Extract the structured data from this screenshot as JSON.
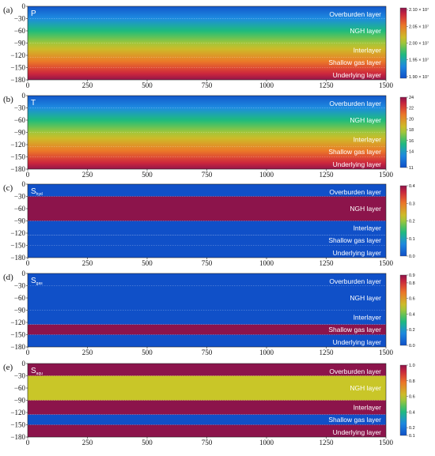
{
  "chart_data": [
    {
      "type": "heatmap",
      "panel_label": "(a)",
      "variable": "P",
      "variable_sub": "",
      "colorbar_label": "P",
      "colorbar_ticks": [
        "2.10 × 10⁷",
        "2.05 × 10⁷",
        "2.00 × 10⁷",
        "1.95 × 10⁷",
        "1.90 × 10⁷"
      ],
      "colorbar_tick_values": [
        21000000,
        20500000,
        20000000,
        19500000,
        19000000
      ],
      "colorbar_range": [
        18950000,
        21050000
      ],
      "colormap": "jet",
      "field": "vertical-gradient",
      "layers": [
        "Overburden layer",
        "NGH layer",
        "Interlayer",
        "Shallow gas layer",
        "Underlying layer"
      ],
      "layer_depths": [
        [
          0,
          30
        ],
        [
          30,
          90
        ],
        [
          90,
          125
        ],
        [
          125,
          150
        ],
        [
          150,
          180
        ]
      ],
      "xlim": [
        0,
        1500
      ],
      "ylim": [
        -180,
        0
      ],
      "x_ticks": [
        "0",
        "250",
        "500",
        "750",
        "1000",
        "1250",
        "1500"
      ],
      "y_ticks": [
        "0",
        "−30",
        "−60",
        "−90",
        "−120",
        "−150",
        "−180"
      ]
    },
    {
      "type": "heatmap",
      "panel_label": "(b)",
      "variable": "T",
      "variable_sub": "",
      "colorbar_label": "T",
      "colorbar_ticks": [
        "24",
        "22",
        "20",
        "18",
        "16",
        "14",
        "11"
      ],
      "colorbar_tick_values": [
        24,
        22,
        20,
        18,
        16,
        14,
        11
      ],
      "colorbar_range": [
        11,
        24
      ],
      "colormap": "jet",
      "field": "vertical-gradient",
      "layers": [
        "Overburden layer",
        "NGH layer",
        "Interlayer",
        "Shallow gas layer",
        "Underlying layer"
      ],
      "layer_depths": [
        [
          0,
          30
        ],
        [
          30,
          90
        ],
        [
          90,
          125
        ],
        [
          125,
          150
        ],
        [
          150,
          180
        ]
      ],
      "xlim": [
        0,
        1500
      ],
      "ylim": [
        -180,
        0
      ],
      "x_ticks": [
        "0",
        "250",
        "500",
        "750",
        "1000",
        "1250",
        "1500"
      ],
      "y_ticks": [
        "0",
        "−30",
        "−60",
        "−90",
        "−120",
        "−150",
        "−180"
      ]
    },
    {
      "type": "heatmap",
      "panel_label": "(c)",
      "variable": "S",
      "variable_sub": "hyd",
      "colorbar_label": "S_hyd",
      "colorbar_ticks": [
        "0.4",
        "0.3",
        "0.2",
        "0.1",
        "0.0"
      ],
      "colorbar_tick_values": [
        0.4,
        0.3,
        0.2,
        0.1,
        0.0
      ],
      "colorbar_range": [
        0.0,
        0.4
      ],
      "colormap": "jet",
      "field": "layered",
      "layers": [
        "Overburden layer",
        "NGH layer",
        "Interlayer",
        "Shallow gas layer",
        "Underlying layer"
      ],
      "layer_depths": [
        [
          0,
          30
        ],
        [
          30,
          90
        ],
        [
          90,
          125
        ],
        [
          125,
          150
        ],
        [
          150,
          180
        ]
      ],
      "layer_values": [
        0.0,
        0.4,
        0.0,
        0.0,
        0.0
      ],
      "xlim": [
        0,
        1500
      ],
      "ylim": [
        -180,
        0
      ],
      "x_ticks": [
        "0",
        "250",
        "500",
        "750",
        "1000",
        "1250",
        "1500"
      ],
      "y_ticks": [
        "0",
        "−30",
        "−60",
        "−90",
        "−120",
        "−150",
        "−180"
      ]
    },
    {
      "type": "heatmap",
      "panel_label": "(d)",
      "variable": "S",
      "variable_sub": "gas",
      "colorbar_label": "S_gas",
      "colorbar_ticks": [
        "0.9",
        "0.8",
        "0.6",
        "0.4",
        "0.2",
        "0.0"
      ],
      "colorbar_tick_values": [
        0.9,
        0.8,
        0.6,
        0.4,
        0.2,
        0.0
      ],
      "colorbar_range": [
        0.0,
        0.9
      ],
      "colormap": "jet",
      "field": "layered",
      "layers": [
        "Overburden layer",
        "NGH layer",
        "Interlayer",
        "Shallow gas layer",
        "Underlying layer"
      ],
      "layer_depths": [
        [
          0,
          30
        ],
        [
          30,
          90
        ],
        [
          90,
          125
        ],
        [
          125,
          150
        ],
        [
          150,
          180
        ]
      ],
      "layer_values": [
        0.0,
        0.0,
        0.0,
        0.9,
        0.0
      ],
      "xlim": [
        0,
        1500
      ],
      "ylim": [
        -180,
        0
      ],
      "x_ticks": [
        "0",
        "250",
        "500",
        "750",
        "1000",
        "1250",
        "1500"
      ],
      "y_ticks": [
        "0",
        "−30",
        "−60",
        "−90",
        "−120",
        "−150",
        "−180"
      ]
    },
    {
      "type": "heatmap",
      "panel_label": "(e)",
      "variable": "S",
      "variable_sub": "aqu",
      "colorbar_label": "S_aqu",
      "colorbar_ticks": [
        "1.0",
        "0.8",
        "0.6",
        "0.4",
        "0.2",
        "0.1"
      ],
      "colorbar_tick_values": [
        1.0,
        0.8,
        0.6,
        0.4,
        0.2,
        0.1
      ],
      "colorbar_range": [
        0.1,
        1.0
      ],
      "colormap": "jet",
      "field": "layered",
      "layers": [
        "Overburden layer",
        "NGH layer",
        "Interlayer",
        "Shallow gas layer",
        "Underlying layer"
      ],
      "layer_depths": [
        [
          0,
          30
        ],
        [
          30,
          90
        ],
        [
          90,
          125
        ],
        [
          125,
          150
        ],
        [
          150,
          180
        ]
      ],
      "layer_values": [
        1.0,
        0.6,
        1.0,
        0.1,
        1.0
      ],
      "xlim": [
        0,
        1500
      ],
      "ylim": [
        -180,
        0
      ],
      "x_ticks": [
        "0",
        "250",
        "500",
        "750",
        "1000",
        "1250",
        "1500"
      ],
      "y_ticks": [
        "0",
        "−30",
        "−60",
        "−90",
        "−120",
        "−150",
        "−180"
      ]
    }
  ]
}
